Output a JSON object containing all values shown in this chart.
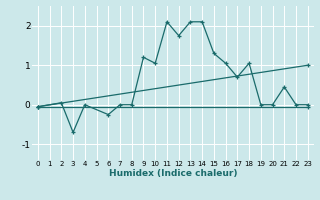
{
  "xlabel": "Humidex (Indice chaleur)",
  "bg_color": "#cce8ea",
  "line_color": "#1a6b6b",
  "grid_color": "#ffffff",
  "xlim": [
    -0.5,
    23.5
  ],
  "ylim": [
    -1.4,
    2.5
  ],
  "xticks": [
    0,
    1,
    2,
    3,
    4,
    5,
    6,
    7,
    8,
    9,
    10,
    11,
    12,
    13,
    14,
    15,
    16,
    17,
    18,
    19,
    20,
    21,
    22,
    23
  ],
  "yticks": [
    -1,
    0,
    1,
    2
  ],
  "line1_x": [
    0,
    2,
    3,
    4,
    6,
    7,
    8,
    9,
    10,
    11,
    12,
    13,
    14,
    15,
    16,
    17,
    18,
    19,
    20,
    21,
    22,
    23
  ],
  "line1_y": [
    -0.05,
    0.05,
    -0.7,
    0.0,
    -0.25,
    0.0,
    0.0,
    1.2,
    1.05,
    2.1,
    1.75,
    2.1,
    2.1,
    1.3,
    1.05,
    0.7,
    1.05,
    0.0,
    0.0,
    0.45,
    0.0,
    0.0
  ],
  "line2_x": [
    0,
    23
  ],
  "line2_y": [
    -0.05,
    1.0
  ],
  "line3_x": [
    0,
    23
  ],
  "line3_y": [
    -0.05,
    -0.05
  ]
}
